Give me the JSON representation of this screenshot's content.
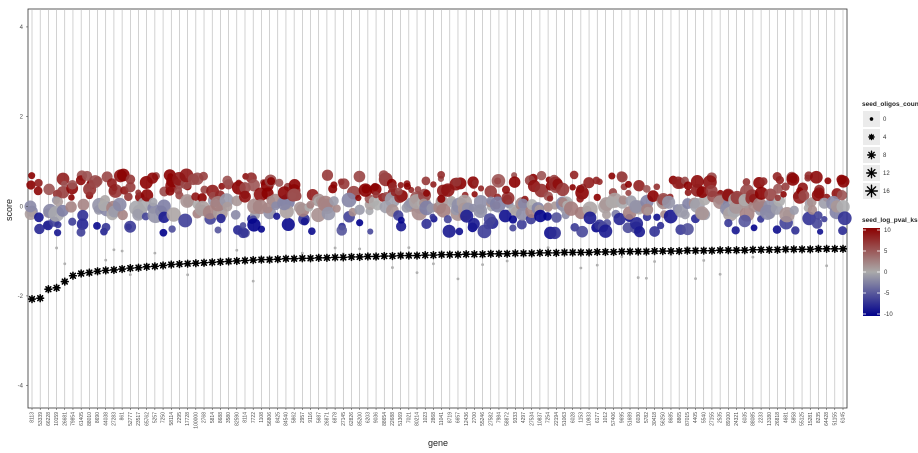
{
  "chart_data": {
    "type": "scatter",
    "title": "",
    "xlabel": "gene",
    "ylabel": "score",
    "ylim": [
      -4.5,
      4.4
    ],
    "yticks": [
      -4,
      -2,
      0,
      2,
      4
    ],
    "grid": "vertical lines at each gene",
    "categories": [
      "8113",
      "53339",
      "66228",
      "10159",
      "26681",
      "79854",
      "61405",
      "88010",
      "8690",
      "44038",
      "27283",
      "861",
      "52777",
      "23517",
      "65762",
      "5257",
      "7250",
      "58114",
      "2295",
      "17728",
      "100000",
      "2768",
      "5814",
      "8688",
      "3580",
      "82590",
      "8114",
      "7722",
      "1108",
      "56806",
      "8425",
      "84540",
      "5862",
      "2957",
      "9116",
      "5687",
      "26871",
      "6878",
      "27145",
      "62826",
      "85200",
      "6203",
      "9036",
      "88654",
      "22688",
      "51369",
      "7021",
      "80214",
      "1023",
      "2868",
      "11041",
      "8719",
      "6657",
      "12436",
      "2700",
      "55246",
      "27582",
      "7984",
      "58872",
      "9333",
      "4297",
      "27534",
      "10837",
      "7254",
      "22194",
      "51063",
      "6028",
      "1153",
      "10933",
      "6177",
      "1012",
      "57406",
      "9695",
      "51689",
      "6030",
      "5782",
      "30418",
      "56250",
      "8685",
      "8865",
      "87015",
      "4405",
      "5540",
      "27155",
      "2535",
      "89100",
      "24321",
      "6035",
      "88085",
      "2233",
      "13180",
      "26818",
      "4681",
      "5858",
      "55125",
      "15281",
      "8235",
      "64428",
      "51155",
      "6145"
    ],
    "series": [
      {
        "name": "score",
        "values": [
          -2.07,
          -2.05,
          -1.85,
          -1.82,
          -1.68,
          -1.55,
          -1.5,
          -1.48,
          -1.45,
          -1.43,
          -1.42,
          -1.4,
          -1.38,
          -1.37,
          -1.35,
          -1.34,
          -1.32,
          -1.3,
          -1.29,
          -1.28,
          -1.27,
          -1.26,
          -1.25,
          -1.24,
          -1.23,
          -1.22,
          -1.21,
          -1.2,
          -1.19,
          -1.19,
          -1.18,
          -1.17,
          -1.17,
          -1.16,
          -1.16,
          -1.15,
          -1.15,
          -1.14,
          -1.14,
          -1.13,
          -1.13,
          -1.12,
          -1.12,
          -1.11,
          -1.11,
          -1.1,
          -1.1,
          -1.1,
          -1.09,
          -1.09,
          -1.08,
          -1.08,
          -1.08,
          -1.07,
          -1.07,
          -1.07,
          -1.06,
          -1.06,
          -1.06,
          -1.05,
          -1.05,
          -1.05,
          -1.04,
          -1.04,
          -1.04,
          -1.03,
          -1.03,
          -1.03,
          -1.03,
          -1.02,
          -1.02,
          -1.02,
          -1.01,
          -1.01,
          -1.01,
          -1.01,
          -1.0,
          -1.0,
          -1.0,
          -1.0,
          -0.99,
          -0.99,
          -0.99,
          -0.99,
          -0.98,
          -0.98,
          -0.98,
          -0.98,
          -0.97,
          -0.97,
          -0.97,
          -0.97,
          -0.96,
          -0.96,
          -0.96,
          -0.96,
          -0.95,
          -0.95,
          -0.95,
          -0.95
        ]
      }
    ],
    "legend": {
      "placement": "right",
      "size_title": "seed_oligos_coun",
      "size_labels": [
        "0",
        "4",
        "8",
        "12",
        "16"
      ],
      "color_title": "seed_log_pval_ks",
      "color_labels": [
        "10",
        "5",
        "0",
        "-5",
        "-10"
      ],
      "color_stops": [
        "#8b0000",
        "#aaaaaa",
        "#00008b"
      ]
    },
    "colors": {
      "high": "#8b0000",
      "mid": "#b0b0b0",
      "low": "#00008b",
      "axis_text": "#4d4d4d",
      "grid": "#b3b3b3",
      "panel_border": "#333333"
    }
  }
}
